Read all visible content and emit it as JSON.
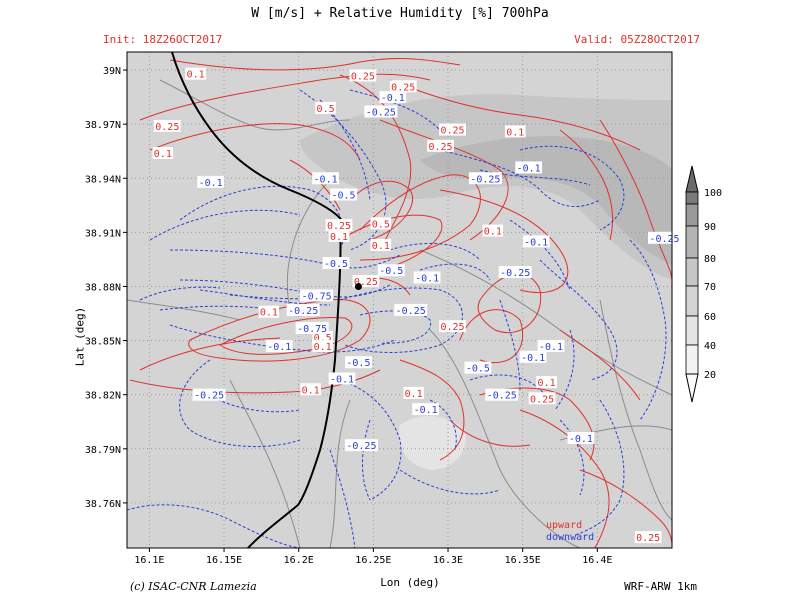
{
  "header": {
    "title": "W [m/s] + Relative Humidity [%] 700hPa",
    "init": "Init: 18Z26OCT2017",
    "valid": "Valid: 05Z28OCT2017"
  },
  "footer": {
    "credit": "(c) ISAC-CNR Lamezia",
    "model": "WRF-ARW 1km"
  },
  "colors": {
    "upward": "#e0302a",
    "downward": "#2a3fd6",
    "coast": "#000000",
    "borders": "#8c8c8c"
  },
  "chart_data": {
    "type": "contour",
    "title": "W [m/s] + Relative Humidity [%] 700hPa",
    "xlabel": "Lon (deg)",
    "ylabel": "Lat (deg)",
    "xlim": [
      16.085,
      16.45
    ],
    "ylim": [
      38.735,
      39.01
    ],
    "grid": true,
    "x_ticks": [
      "16.1E",
      "16.15E",
      "16.2E",
      "16.25E",
      "16.3E",
      "16.35E",
      "16.4E"
    ],
    "x_tick_values": [
      16.1,
      16.15,
      16.2,
      16.25,
      16.3,
      16.35,
      16.4
    ],
    "y_ticks": [
      "39N",
      "38.97N",
      "38.94N",
      "38.91N",
      "38.88N",
      "38.85N",
      "38.82N",
      "38.79N",
      "38.76N"
    ],
    "y_tick_values": [
      39.0,
      38.97,
      38.94,
      38.91,
      38.88,
      38.85,
      38.82,
      38.79,
      38.76
    ],
    "colorbar": {
      "levels": [
        20,
        40,
        60,
        70,
        80,
        90,
        100
      ],
      "labels": [
        "100",
        "90",
        "80",
        "70",
        "60",
        "40",
        "20"
      ]
    },
    "legend": {
      "upward": "upward",
      "downward": "downward"
    },
    "point": {
      "lon": 16.24,
      "lat": 38.88
    },
    "contour_labels": [
      {
        "text": "0.1",
        "lon": 16.131,
        "lat": 38.998,
        "series": "upward"
      },
      {
        "text": "0.25",
        "lon": 16.243,
        "lat": 38.997,
        "series": "upward"
      },
      {
        "text": "0.25",
        "lon": 16.27,
        "lat": 38.991,
        "series": "upward"
      },
      {
        "text": "0.5",
        "lon": 16.218,
        "lat": 38.979,
        "series": "upward"
      },
      {
        "text": "0.25",
        "lon": 16.112,
        "lat": 38.969,
        "series": "upward"
      },
      {
        "text": "0.1",
        "lon": 16.109,
        "lat": 38.954,
        "series": "upward"
      },
      {
        "text": "0.1",
        "lon": 16.345,
        "lat": 38.966,
        "series": "upward"
      },
      {
        "text": "0.25",
        "lon": 16.303,
        "lat": 38.967,
        "series": "upward"
      },
      {
        "text": "0.25",
        "lon": 16.295,
        "lat": 38.958,
        "series": "upward"
      },
      {
        "text": "0.25",
        "lon": 16.227,
        "lat": 38.914,
        "series": "upward"
      },
      {
        "text": "0.1",
        "lon": 16.227,
        "lat": 38.908,
        "series": "upward"
      },
      {
        "text": "0.5",
        "lon": 16.255,
        "lat": 38.915,
        "series": "upward"
      },
      {
        "text": "0.1",
        "lon": 16.255,
        "lat": 38.903,
        "series": "upward"
      },
      {
        "text": "0.1",
        "lon": 16.33,
        "lat": 38.911,
        "series": "upward"
      },
      {
        "text": "0.25",
        "lon": 16.245,
        "lat": 38.883,
        "series": "upward"
      },
      {
        "text": "0.1",
        "lon": 16.18,
        "lat": 38.866,
        "series": "upward"
      },
      {
        "text": "0.25",
        "lon": 16.303,
        "lat": 38.858,
        "series": "upward"
      },
      {
        "text": "0.5",
        "lon": 16.216,
        "lat": 38.852,
        "series": "upward"
      },
      {
        "text": "0.1",
        "lon": 16.216,
        "lat": 38.847,
        "series": "upward"
      },
      {
        "text": "0.1",
        "lon": 16.208,
        "lat": 38.823,
        "series": "upward"
      },
      {
        "text": "0.1",
        "lon": 16.277,
        "lat": 38.821,
        "series": "upward"
      },
      {
        "text": "0.1",
        "lon": 16.366,
        "lat": 38.827,
        "series": "upward"
      },
      {
        "text": "0.25",
        "lon": 16.363,
        "lat": 38.818,
        "series": "upward"
      },
      {
        "text": "0.25",
        "lon": 16.434,
        "lat": 38.741,
        "series": "upward"
      },
      {
        "text": "-0.1",
        "lon": 16.263,
        "lat": 38.985,
        "series": "downward"
      },
      {
        "text": "-0.25",
        "lon": 16.255,
        "lat": 38.977,
        "series": "downward"
      },
      {
        "text": "-0.1",
        "lon": 16.218,
        "lat": 38.94,
        "series": "downward"
      },
      {
        "text": "-0.1",
        "lon": 16.141,
        "lat": 38.938,
        "series": "downward"
      },
      {
        "text": "-0.5",
        "lon": 16.23,
        "lat": 38.931,
        "series": "downward"
      },
      {
        "text": "-0.1",
        "lon": 16.354,
        "lat": 38.946,
        "series": "downward"
      },
      {
        "text": "-0.25",
        "lon": 16.325,
        "lat": 38.94,
        "series": "downward"
      },
      {
        "text": "-0.1",
        "lon": 16.359,
        "lat": 38.905,
        "series": "downward"
      },
      {
        "text": "-0.25",
        "lon": 16.445,
        "lat": 38.907,
        "series": "downward"
      },
      {
        "text": "-0.5",
        "lon": 16.225,
        "lat": 38.893,
        "series": "downward"
      },
      {
        "text": "-0.5",
        "lon": 16.262,
        "lat": 38.889,
        "series": "downward"
      },
      {
        "text": "-0.1",
        "lon": 16.286,
        "lat": 38.885,
        "series": "downward"
      },
      {
        "text": "-0.25",
        "lon": 16.345,
        "lat": 38.888,
        "series": "downward"
      },
      {
        "text": "-0.75",
        "lon": 16.212,
        "lat": 38.875,
        "series": "downward"
      },
      {
        "text": "-0.25",
        "lon": 16.203,
        "lat": 38.867,
        "series": "downward"
      },
      {
        "text": "-0.25",
        "lon": 16.275,
        "lat": 38.867,
        "series": "downward"
      },
      {
        "text": "-0.75",
        "lon": 16.209,
        "lat": 38.857,
        "series": "downward"
      },
      {
        "text": "-0.1",
        "lon": 16.187,
        "lat": 38.847,
        "series": "downward"
      },
      {
        "text": "-0.1",
        "lon": 16.369,
        "lat": 38.847,
        "series": "downward"
      },
      {
        "text": "-0.1",
        "lon": 16.357,
        "lat": 38.841,
        "series": "downward"
      },
      {
        "text": "-0.5",
        "lon": 16.24,
        "lat": 38.838,
        "series": "downward"
      },
      {
        "text": "-0.5",
        "lon": 16.32,
        "lat": 38.835,
        "series": "downward"
      },
      {
        "text": "-0.1",
        "lon": 16.229,
        "lat": 38.829,
        "series": "downward"
      },
      {
        "text": "-0.25",
        "lon": 16.14,
        "lat": 38.82,
        "series": "downward"
      },
      {
        "text": "-0.25",
        "lon": 16.336,
        "lat": 38.82,
        "series": "downward"
      },
      {
        "text": "-0.1",
        "lon": 16.285,
        "lat": 38.812,
        "series": "downward"
      },
      {
        "text": "-0.25",
        "lon": 16.242,
        "lat": 38.792,
        "series": "downward"
      },
      {
        "text": "-0.1",
        "lon": 16.389,
        "lat": 38.796,
        "series": "downward"
      }
    ]
  }
}
